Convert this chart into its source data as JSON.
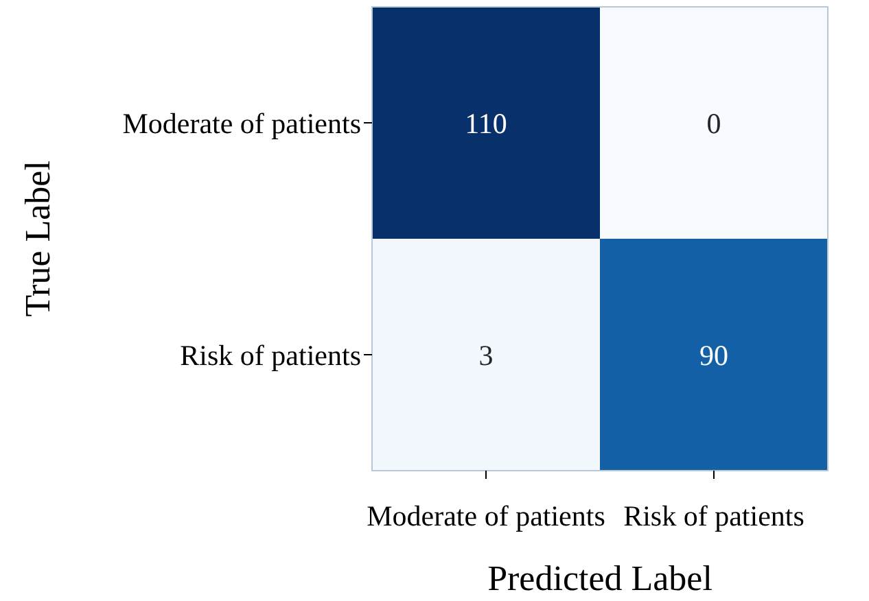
{
  "chart_data": {
    "type": "heatmap",
    "xlabel": "Predicted Label",
    "ylabel": "True Label",
    "categories": [
      "Moderate of patients",
      "Risk of patients"
    ],
    "y_categories": [
      "Moderate of patients",
      "Risk of patients"
    ],
    "cells": [
      [
        110,
        0
      ],
      [
        3,
        90
      ]
    ],
    "data_labels": true
  }
}
